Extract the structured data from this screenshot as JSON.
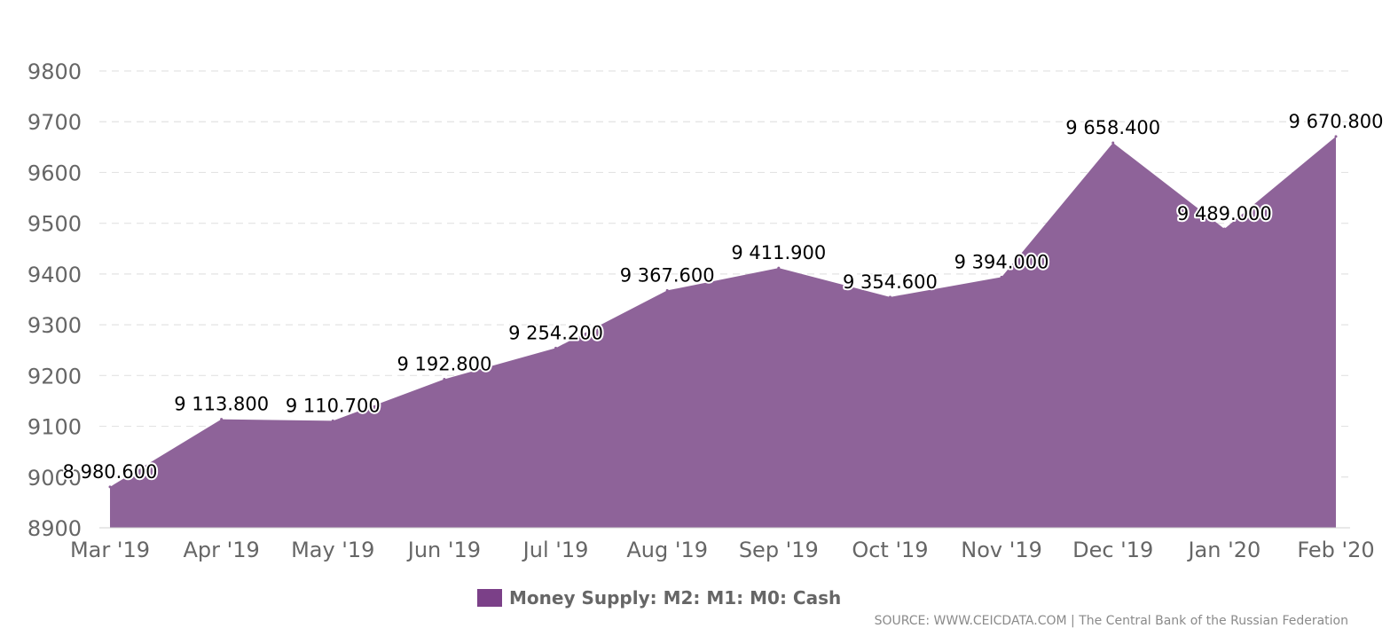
{
  "chart_data": {
    "type": "area",
    "categories": [
      "Mar '19",
      "Apr '19",
      "May '19",
      "Jun '19",
      "Jul '19",
      "Aug '19",
      "Sep '19",
      "Oct '19",
      "Nov '19",
      "Dec '19",
      "Jan '20",
      "Feb '20"
    ],
    "series": [
      {
        "name": "Money Supply: M2: M1: M0: Cash",
        "values": [
          8980.6,
          9113.8,
          9110.7,
          9192.8,
          9254.2,
          9367.6,
          9411.9,
          9354.6,
          9394.0,
          9658.4,
          9489.0,
          9670.8
        ],
        "color": "#8e6399"
      }
    ],
    "data_labels": [
      "8 980.600",
      "9 113.800",
      "9 110.700",
      "9 192.800",
      "9 254.200",
      "9 367.600",
      "9 411.900",
      "9 354.600",
      "9 394.000",
      "9 658.400",
      "9 489.000",
      "9 670.800"
    ],
    "y_ticks": [
      "8900",
      "9000",
      "9100",
      "9200",
      "9300",
      "9400",
      "9500",
      "9600",
      "9700",
      "9800"
    ],
    "ylim": [
      8900,
      9800
    ],
    "grid": true,
    "legend_position": "bottom-center",
    "xlabel": "",
    "ylabel": ""
  },
  "legend": {
    "label": "Money Supply: M2: M1: M0: Cash",
    "swatch_color": "#7b4088"
  },
  "source": "SOURCE: WWW.CEICDATA.COM | The Central Bank of the Russian Federation"
}
